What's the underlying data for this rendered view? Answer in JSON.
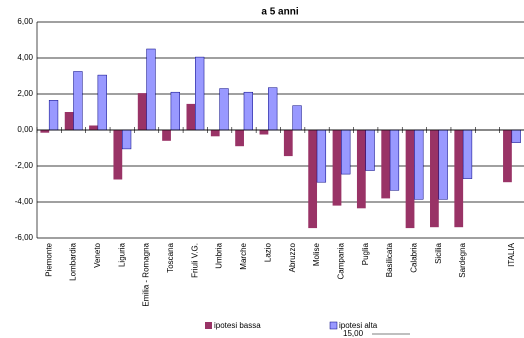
{
  "chart_data": {
    "type": "bar",
    "title": "a 5 anni",
    "categories": [
      "Piemonte",
      "Lombardia",
      "Veneto",
      "Liguria",
      "Emilia - Romagna",
      "Toscana",
      "Friuli V.G.",
      "Umbria",
      "Marche",
      "Lazio",
      "Abruzzo",
      "Molise",
      "Campania",
      "Puglia",
      "Basilicata",
      "Calabria",
      "Sicilia",
      "Sardegna",
      null,
      "ITALIA"
    ],
    "series": [
      {
        "name": "ipotesi bassa",
        "color": "#993366",
        "values": [
          -0.15,
          1.0,
          0.25,
          -2.75,
          2.05,
          -0.6,
          1.45,
          -0.35,
          -0.9,
          -0.25,
          -1.45,
          -5.45,
          -4.2,
          -4.35,
          -3.8,
          -5.45,
          -5.4,
          -5.4,
          null,
          -2.9
        ]
      },
      {
        "name": "ipotesi alta",
        "color": "#9999ff",
        "values": [
          1.65,
          3.25,
          3.05,
          -1.05,
          4.5,
          2.1,
          4.05,
          2.3,
          2.1,
          2.35,
          1.35,
          -2.9,
          -2.45,
          -2.25,
          -3.35,
          -3.85,
          -3.85,
          -2.7,
          null,
          -0.7
        ]
      }
    ],
    "ylim": [
      -6,
      6
    ],
    "yticks": [
      {
        "value": -6,
        "label": "-6,00"
      },
      {
        "value": -4,
        "label": "-4,00"
      },
      {
        "value": -2,
        "label": "-2,00"
      },
      {
        "value": 0,
        "label": "0,00"
      },
      {
        "value": 2,
        "label": "2,00"
      },
      {
        "value": 4,
        "label": "4,00"
      },
      {
        "value": 6,
        "label": "6,00"
      }
    ],
    "grid": true,
    "legend": "bottom",
    "overlay_text": "15,00"
  }
}
